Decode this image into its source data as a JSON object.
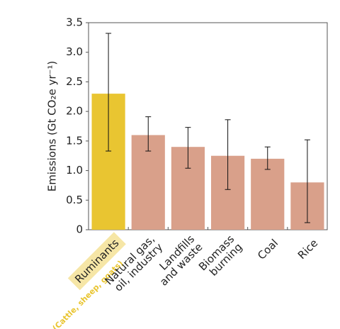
{
  "chart_data": {
    "type": "bar",
    "ylabel": "Emissions (Gt CO₂e yr⁻¹)",
    "categories": [
      "Ruminants",
      "Natural gas,\noil, industry",
      "Landfills\nand waste",
      "Biomass\nburning",
      "Coal",
      "Rice"
    ],
    "annotation": "(Cattle, sheep, goats)",
    "values": [
      2.3,
      1.6,
      1.4,
      1.25,
      1.2,
      0.8
    ],
    "error_low": [
      1.33,
      1.33,
      1.04,
      0.68,
      1.02,
      0.12
    ],
    "error_high": [
      3.32,
      1.91,
      1.73,
      1.86,
      1.4,
      1.52
    ],
    "colors": [
      "#e9c531",
      "#d9a08a",
      "#d9a08a",
      "#d9a08a",
      "#d9a08a",
      "#d9a08a"
    ],
    "highlight_color": "#f6e6a6",
    "annotation_color": "#e9c531",
    "ylim": [
      0,
      3.5
    ],
    "yticks": [
      0,
      0.5,
      {
        "value": 1,
        "label": "1.0"
      },
      1.5,
      {
        "value": 2,
        "label": "2.0"
      },
      2.5,
      {
        "value": 3,
        "label": "3.0"
      },
      3.5
    ]
  }
}
